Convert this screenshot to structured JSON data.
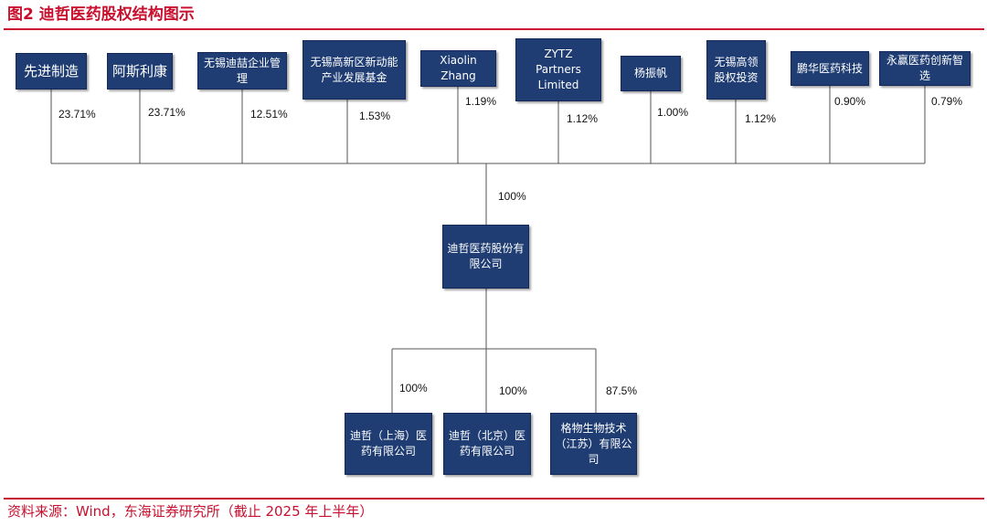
{
  "header": {
    "title": "图2  迪哲医药股权结构图示"
  },
  "shareholders": [
    {
      "name": "先进制造",
      "pct": "23.71%"
    },
    {
      "name": "阿斯利康",
      "pct": "23.71%"
    },
    {
      "name": "无锡迪喆企业管理",
      "pct": "12.51%"
    },
    {
      "name": "无锡高新区新动能产业发展基金",
      "pct": "1.53%"
    },
    {
      "name": "Xiaolin Zhang",
      "pct": "1.19%"
    },
    {
      "name": "ZYTZ Partners Limited",
      "pct": "1.12%"
    },
    {
      "name": "杨振帆",
      "pct": "1.00%"
    },
    {
      "name": "无锡高领股权投资",
      "pct": "1.12%"
    },
    {
      "name": "鹏华医药科技",
      "pct": "0.90%"
    },
    {
      "name": "永赢医药创新智选",
      "pct": "0.79%"
    }
  ],
  "company": {
    "name": "迪哲医药股份有限公司",
    "pct": "100%"
  },
  "subsidiaries": [
    {
      "name": "迪哲（上海）医药有限公司",
      "pct": "100%"
    },
    {
      "name": "迪哲（北京）医药有限公司",
      "pct": "100%"
    },
    {
      "name": "格物生物技术（江苏）有限公司",
      "pct": "87.5%"
    }
  ],
  "footer": {
    "source": "资料来源：Wind，东海证券研究所（截止 2025 年上半年）"
  },
  "colors": {
    "box": "#1f3d73",
    "accent": "#c8102e",
    "line": "#555555"
  }
}
